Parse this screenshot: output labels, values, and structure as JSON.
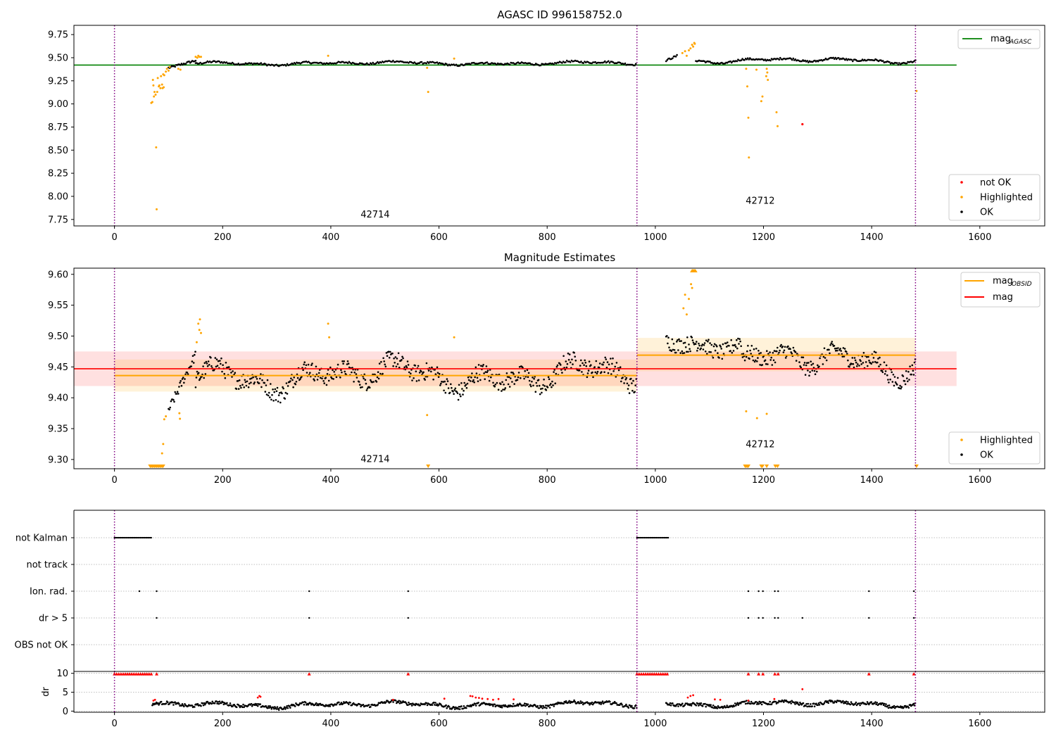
{
  "chart_data": [
    {
      "type": "scatter",
      "title": "AGASC ID 996158752.0",
      "xlim": [
        -75,
        1720
      ],
      "ylim": [
        7.68,
        9.85
      ],
      "xticks": [
        0,
        200,
        400,
        600,
        800,
        1000,
        1200,
        1400,
        1600
      ],
      "yticks": [
        7.75,
        8.0,
        8.25,
        8.5,
        8.75,
        9.0,
        9.25,
        9.5,
        9.75
      ],
      "ytick_labels": [
        "7.75",
        "8.00",
        "8.25",
        "8.50",
        "8.75",
        "9.00",
        "9.25",
        "9.50",
        "9.75"
      ],
      "grid": false,
      "obs_boundaries": [
        0,
        966,
        1481
      ],
      "obsid_labels": [
        {
          "text": "42714",
          "x": 482,
          "y": 7.77
        },
        {
          "text": "42712",
          "x": 1194,
          "y": 7.92
        }
      ],
      "mag_agasc": {
        "value": 9.42,
        "x_range": [
          -75,
          1557
        ]
      },
      "legend_top": {
        "position": "top-right",
        "entries": [
          {
            "label": "mag",
            "sub": "AGASC",
            "color": "#008000"
          }
        ]
      },
      "legend_bottom": {
        "position": "bottom-right",
        "entries": [
          {
            "label": "not OK",
            "color": "#ff0000"
          },
          {
            "label": "Highlighted",
            "color": "#ffa500"
          },
          {
            "label": "OK",
            "color": "#000000"
          }
        ]
      },
      "highlighted_points": [
        [
          68,
          9.01
        ],
        [
          70,
          9.02
        ],
        [
          71,
          9.26
        ],
        [
          72,
          9.2
        ],
        [
          73,
          9.08
        ],
        [
          74,
          9.13
        ],
        [
          76,
          9.1
        ],
        [
          77,
          8.53
        ],
        [
          78,
          7.86
        ],
        [
          79,
          9.13
        ],
        [
          80,
          9.28
        ],
        [
          82,
          9.19
        ],
        [
          83,
          9.2
        ],
        [
          85,
          9.17
        ],
        [
          86,
          9.3
        ],
        [
          88,
          9.21
        ],
        [
          89,
          9.17
        ],
        [
          90,
          9.32
        ],
        [
          91,
          9.18
        ],
        [
          92,
          9.31
        ],
        [
          95,
          9.35
        ],
        [
          97,
          9.38
        ],
        [
          100,
          9.36
        ],
        [
          102,
          9.4
        ],
        [
          118,
          9.38
        ],
        [
          122,
          9.37
        ],
        [
          150,
          9.51
        ],
        [
          153,
          9.5
        ],
        [
          155,
          9.52
        ],
        [
          157,
          9.51
        ],
        [
          160,
          9.51
        ],
        [
          395,
          9.52
        ],
        [
          578,
          9.39
        ],
        [
          580,
          9.13
        ],
        [
          628,
          9.49
        ],
        [
          1050,
          9.55
        ],
        [
          1055,
          9.57
        ],
        [
          1058,
          9.52
        ],
        [
          1062,
          9.58
        ],
        [
          1065,
          9.6
        ],
        [
          1068,
          9.64
        ],
        [
          1070,
          9.62
        ],
        [
          1072,
          9.66
        ],
        [
          1073,
          9.65
        ],
        [
          1168,
          9.38
        ],
        [
          1170,
          9.19
        ],
        [
          1172,
          8.85
        ],
        [
          1173,
          8.42
        ],
        [
          1187,
          9.37
        ],
        [
          1196,
          9.03
        ],
        [
          1198,
          9.08
        ],
        [
          1205,
          9.3
        ],
        [
          1206,
          9.38
        ],
        [
          1207,
          9.34
        ],
        [
          1208,
          9.26
        ],
        [
          1224,
          8.91
        ],
        [
          1226,
          8.76
        ],
        [
          1483,
          9.14
        ]
      ],
      "not_ok_points": [
        [
          1272,
          8.78
        ]
      ],
      "ok_segments": [
        {
          "x0": 100,
          "x1": 150,
          "y0": 9.39,
          "y1": 9.47,
          "spread": 0.012,
          "step": 2
        },
        {
          "x0": 150,
          "x1": 966,
          "mean": 9.44,
          "amp": 0.018,
          "spread": 0.01,
          "step": 2.2
        },
        {
          "x0": 1020,
          "x1": 1040,
          "y0": 9.47,
          "y1": 9.52,
          "spread": 0.01,
          "step": 2
        },
        {
          "x0": 1075,
          "x1": 1481,
          "mean": 9.47,
          "amp": 0.025,
          "spread": 0.01,
          "step": 2
        }
      ]
    },
    {
      "type": "scatter",
      "title": "Magnitude Estimates",
      "xlim": [
        -75,
        1720
      ],
      "ylim": [
        9.285,
        9.61
      ],
      "xticks": [
        0,
        200,
        400,
        600,
        800,
        1000,
        1200,
        1400,
        1600
      ],
      "yticks": [
        9.3,
        9.35,
        9.4,
        9.45,
        9.5,
        9.55,
        9.6
      ],
      "ytick_labels": [
        "9.30",
        "9.35",
        "9.40",
        "9.45",
        "9.50",
        "9.55",
        "9.60"
      ],
      "grid": false,
      "obs_boundaries": [
        0,
        966,
        1481
      ],
      "obsid_labels": [
        {
          "text": "42714",
          "x": 482,
          "y": 9.296
        },
        {
          "text": "42712",
          "x": 1194,
          "y": 9.32
        }
      ],
      "mag": {
        "value": 9.447,
        "band": [
          9.419,
          9.475
        ],
        "x_range": [
          -75,
          1557
        ]
      },
      "mag_obsid": [
        {
          "x_range": [
            0,
            966
          ],
          "value": 9.436,
          "band": [
            9.41,
            9.462
          ]
        },
        {
          "x_range": [
            966,
            1481
          ],
          "value": 9.469,
          "band": [
            9.443,
            9.497
          ]
        }
      ],
      "legend_top": {
        "position": "top-right",
        "entries": [
          {
            "label": "mag",
            "sub": "OBSID",
            "color": "#ffa500"
          },
          {
            "label": "mag",
            "color": "#ff0000"
          }
        ]
      },
      "legend_bottom": {
        "position": "bottom-right",
        "entries": [
          {
            "label": "Highlighted",
            "color": "#ffa500"
          },
          {
            "label": "OK",
            "color": "#000000"
          }
        ]
      },
      "highlighted_points": [
        [
          88,
          9.31
        ],
        [
          90,
          9.325
        ],
        [
          92,
          9.365
        ],
        [
          95,
          9.37
        ],
        [
          120,
          9.375
        ],
        [
          121,
          9.366
        ],
        [
          152,
          9.49
        ],
        [
          155,
          9.52
        ],
        [
          157,
          9.51
        ],
        [
          158,
          9.527
        ],
        [
          160,
          9.505
        ],
        [
          395,
          9.52
        ],
        [
          397,
          9.498
        ],
        [
          578,
          9.372
        ],
        [
          628,
          9.498
        ],
        [
          1052,
          9.545
        ],
        [
          1055,
          9.567
        ],
        [
          1058,
          9.535
        ],
        [
          1062,
          9.56
        ],
        [
          1066,
          9.584
        ],
        [
          1068,
          9.578
        ],
        [
          1168,
          9.378
        ],
        [
          1188,
          9.367
        ],
        [
          1206,
          9.374
        ]
      ],
      "clipped_low_x": [
        66,
        68,
        70,
        72,
        74,
        76,
        78,
        80,
        82,
        84,
        86,
        88,
        90,
        580,
        1166,
        1168,
        1170,
        1172,
        1196,
        1198,
        1206,
        1222,
        1226,
        1483
      ],
      "clipped_high_x": [
        1068,
        1070,
        1072,
        1074
      ],
      "ok_segments": [
        {
          "x0": 100,
          "x1": 150,
          "y0": 9.38,
          "y1": 9.47,
          "spread": 0.008,
          "step": 1.5
        },
        {
          "x0": 150,
          "x1": 966,
          "mean": 9.436,
          "amp": 0.022,
          "spread": 0.014,
          "step": 1.4
        },
        {
          "x0": 1020,
          "x1": 1160,
          "mean": 9.49,
          "amp": 0.012,
          "spread": 0.013,
          "step": 1.4
        },
        {
          "x0": 1160,
          "x1": 1481,
          "mean": 9.458,
          "amp": 0.022,
          "spread": 0.013,
          "step": 1.4
        }
      ]
    },
    {
      "type": "scatter",
      "title": "",
      "xlim": [
        -75,
        1720
      ],
      "obs_boundaries": [
        0,
        966,
        1481
      ],
      "flag_rows": [
        "not Kalman",
        "not track",
        "Ion. rad.",
        "dr > 5",
        "OBS not OK"
      ],
      "flags": {
        "not Kalman": {
          "ranges": [
            [
              0,
              68
            ],
            [
              966,
              1024
            ]
          ],
          "points": []
        },
        "not track": {
          "ranges": [],
          "points": []
        },
        "Ion. rad.": {
          "ranges": [],
          "points": [
            46,
            78,
            360,
            543,
            1172,
            1191,
            1199,
            1221,
            1227,
            1395,
            1478
          ]
        },
        "dr > 5": {
          "ranges": [],
          "points": [
            78,
            360,
            543,
            1172,
            1191,
            1199,
            1221,
            1227,
            1272,
            1395,
            1478
          ]
        },
        "OBS not OK": {
          "ranges": [],
          "points": []
        }
      }
    },
    {
      "type": "scatter",
      "title": "",
      "xlim": [
        -75,
        1720
      ],
      "ylim": [
        -0.3,
        10.5
      ],
      "xticks": [
        0,
        200,
        400,
        600,
        800,
        1000,
        1200,
        1400,
        1600
      ],
      "yticks": [
        0,
        5,
        10
      ],
      "ytick_labels": [
        "0",
        "5",
        "10"
      ],
      "ylabel": "dr",
      "obs_boundaries": [
        0,
        966,
        1481
      ],
      "clipped_x": [
        0,
        4,
        8,
        12,
        16,
        20,
        24,
        28,
        32,
        36,
        40,
        44,
        48,
        52,
        56,
        60,
        64,
        68,
        78,
        360,
        543,
        966,
        970,
        974,
        978,
        982,
        986,
        990,
        994,
        998,
        1002,
        1006,
        1010,
        1014,
        1018,
        1022,
        1172,
        1191,
        1199,
        1221,
        1227,
        1395,
        1478
      ],
      "red_points": [
        [
          72,
          2.8
        ],
        [
          75,
          3.0
        ],
        [
          265,
          3.6
        ],
        [
          268,
          4.0
        ],
        [
          270,
          3.8
        ],
        [
          515,
          3.0
        ],
        [
          610,
          3.3
        ],
        [
          658,
          4.0
        ],
        [
          662,
          3.9
        ],
        [
          668,
          3.6
        ],
        [
          674,
          3.5
        ],
        [
          680,
          3.3
        ],
        [
          690,
          3.2
        ],
        [
          700,
          3.0
        ],
        [
          710,
          3.2
        ],
        [
          738,
          3.1
        ],
        [
          1060,
          3.6
        ],
        [
          1065,
          4.0
        ],
        [
          1070,
          4.2
        ],
        [
          1110,
          3.1
        ],
        [
          1120,
          3.0
        ],
        [
          1172,
          2.8
        ],
        [
          1220,
          3.2
        ],
        [
          1272,
          5.8
        ]
      ],
      "ok_segments": [
        {
          "x0": 70,
          "x1": 966,
          "mean": 1.7,
          "amp": 0.7,
          "spread": 0.4,
          "step": 1.5
        },
        {
          "x0": 1020,
          "x1": 1481,
          "mean": 1.9,
          "amp": 0.7,
          "spread": 0.4,
          "step": 1.5
        }
      ]
    }
  ]
}
